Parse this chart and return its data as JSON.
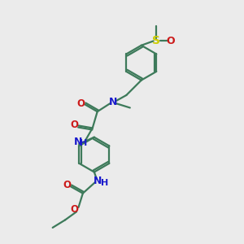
{
  "bg_color": "#ebebeb",
  "bond_color": "#3d7a5a",
  "N_color": "#1a1acc",
  "O_color": "#cc1a1a",
  "S_color": "#cccc00",
  "line_width": 1.6,
  "font_size_atom": 8.5,
  "fig_width": 3.0,
  "fig_height": 3.0,
  "xlim": [
    0,
    10
  ],
  "ylim": [
    0,
    10
  ]
}
